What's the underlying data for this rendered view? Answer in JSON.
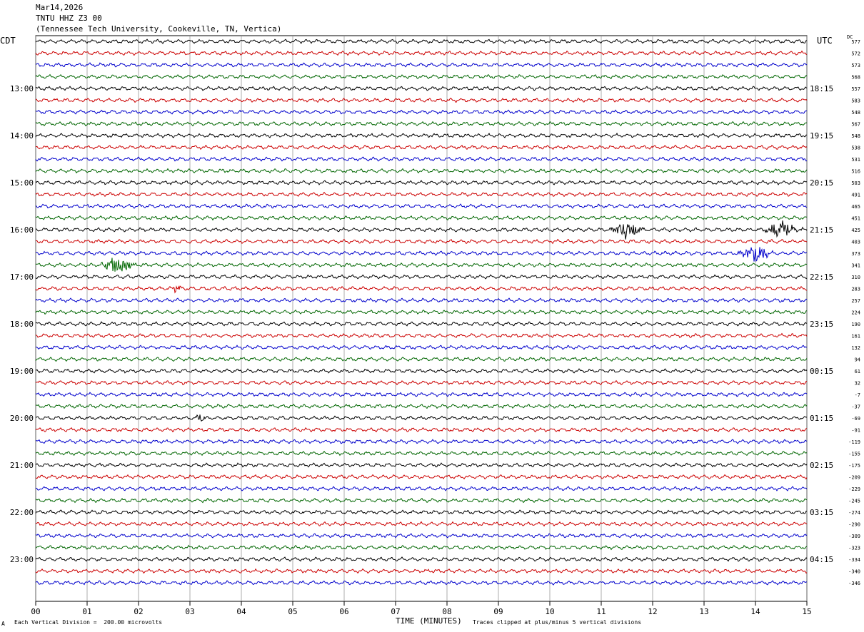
{
  "header": {
    "date": "Mar14,2026",
    "station": "TNTU HHZ Z3 00",
    "location": "(Tennessee Tech University, Cookeville, TN, Vertica)"
  },
  "left_zone": "CDT",
  "right_zone": "UTC",
  "dc_label": "DC",
  "footer": {
    "scale": "Each Vertical Division =  200.00 microvolts",
    "xlabel": "TIME (MINUTES)",
    "clip_note": "Traces clipped at plus/minus 5 vertical divisions",
    "corner": "A"
  },
  "colors": [
    "#000000",
    "#cc0000",
    "#0000cc",
    "#006600"
  ],
  "chart_data": {
    "type": "line",
    "title": "",
    "xlabel": "TIME (MINUTES)",
    "xlim": [
      0,
      15
    ],
    "x_ticks": [
      "00",
      "01",
      "02",
      "03",
      "04",
      "05",
      "06",
      "07",
      "08",
      "09",
      "10",
      "11",
      "12",
      "13",
      "14",
      "15"
    ],
    "left_hour_labels": [
      "13:00",
      "14:00",
      "15:00",
      "16:00",
      "17:00",
      "18:00",
      "19:00",
      "20:00",
      "21:00",
      "22:00",
      "23:00"
    ],
    "right_hour_labels": [
      "18:15",
      "19:15",
      "20:15",
      "21:15",
      "22:15",
      "23:15",
      "00:15",
      "01:15",
      "02:15",
      "03:15",
      "04:15"
    ],
    "dc_offsets": [
      "577",
      "572",
      "573",
      "568",
      "557",
      "583",
      "548",
      "567",
      "548",
      "538",
      "531",
      "516",
      "503",
      "491",
      "465",
      "451",
      "425",
      "403",
      "373",
      "341",
      "310",
      "283",
      "257",
      "224",
      "190",
      "161",
      "132",
      "94",
      "61",
      "32",
      "-7",
      "-37",
      "-69",
      "-91",
      "-119",
      "-155",
      "-175",
      "-209",
      "-229",
      "-245",
      "-274",
      "-290",
      "-309",
      "-323",
      "-334",
      "-340",
      "-346"
    ],
    "grid": true,
    "events": [
      {
        "row": 16,
        "minute": 11.5,
        "amplitude": "large"
      },
      {
        "row": 16,
        "minute": 14.5,
        "amplitude": "large"
      },
      {
        "row": 18,
        "minute": 14.0,
        "amplitude": "large"
      },
      {
        "row": 19,
        "minute": 1.6,
        "amplitude": "large"
      },
      {
        "row": 21,
        "minute": 2.75,
        "amplitude": "small"
      },
      {
        "row": 32,
        "minute": 3.2,
        "amplitude": "small"
      }
    ]
  }
}
